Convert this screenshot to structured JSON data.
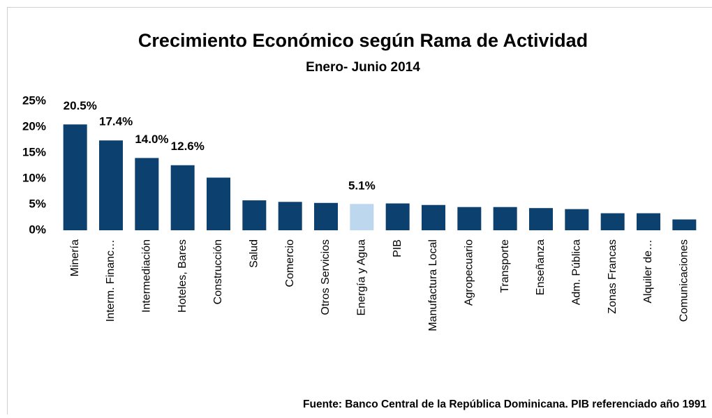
{
  "chart_data": {
    "type": "bar",
    "title": "Crecimiento Económico según Rama de Actividad",
    "subtitle": "Enero- Junio 2014",
    "source": "Fuente: Banco Central de la República Dominicana. PIB referenciado año 1991",
    "categories": [
      "Minería",
      "Interm. Financ…",
      "Intermediación",
      "Hoteles, Bares",
      "Construcción",
      "Salud",
      "Comercio",
      "Otros Servicios",
      "Energía y Agua",
      "PIB",
      "Manufactura Local",
      "Agropecuario",
      "Transporte",
      "Enseñanza",
      "Adm. Pública",
      "Zonas Francas",
      "Alquiler de…",
      "Comunicaciones"
    ],
    "values": [
      20.5,
      17.4,
      14.0,
      12.6,
      10.2,
      5.8,
      5.5,
      5.3,
      5.1,
      5.2,
      4.9,
      4.5,
      4.5,
      4.3,
      4.1,
      3.3,
      3.3,
      2.1
    ],
    "value_labels": [
      "20.5%",
      "17.4%",
      "14.0%",
      "12.6%",
      null,
      null,
      null,
      null,
      "5.1%",
      null,
      null,
      null,
      null,
      null,
      null,
      null,
      null,
      null
    ],
    "colors": [
      "#0c406f",
      "#0c406f",
      "#0c406f",
      "#0c406f",
      "#0c406f",
      "#0c406f",
      "#0c406f",
      "#0c406f",
      "#bdd7ee",
      "#0c406f",
      "#0c406f",
      "#0c406f",
      "#0c406f",
      "#0c406f",
      "#0c406f",
      "#0c406f",
      "#0c406f",
      "#0c406f"
    ],
    "ylim": [
      0,
      25
    ],
    "yticks": [
      {
        "value": 0,
        "label": "0%"
      },
      {
        "value": 5,
        "label": "5%"
      },
      {
        "value": 10,
        "label": "10%"
      },
      {
        "value": 15,
        "label": "15%"
      },
      {
        "value": 20,
        "label": "20%"
      },
      {
        "value": 25,
        "label": "25%"
      }
    ],
    "grid": false
  }
}
